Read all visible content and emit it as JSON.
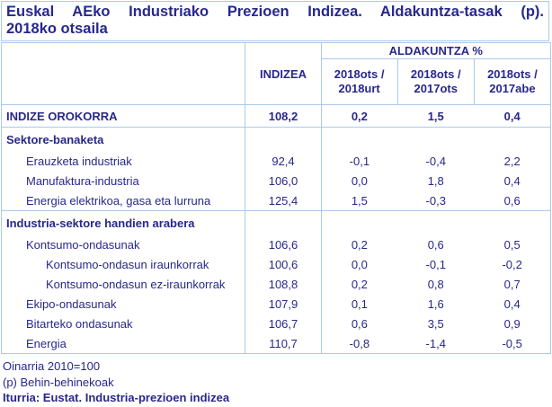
{
  "title": {
    "line1": "Euskal AEko Industriako Prezioen Indizea. Aldakuntza-tasak (p).",
    "line2": "2018ko otsaila"
  },
  "table": {
    "headers": {
      "indizea": "INDIZEA",
      "aldakuntza": "ALDAKUNTZA %",
      "sub": [
        {
          "l1": "2018ots /",
          "l2": "2018urt"
        },
        {
          "l1": "2018ots /",
          "l2": "2017ots"
        },
        {
          "l1": "2018ots /",
          "l2": "2017abe"
        }
      ]
    },
    "rows": [
      {
        "label": "INDIZE OROKORRA",
        "type": "total",
        "indizea": "108,2",
        "v1": "0,2",
        "v2": "1,5",
        "v3": "0,4"
      },
      {
        "label": "Sektore-banaketa",
        "type": "section",
        "indizea": "",
        "v1": "",
        "v2": "",
        "v3": ""
      },
      {
        "label": "Erauzketa industriak",
        "type": "item1",
        "indizea": "92,4",
        "v1": "-0,1",
        "v2": "-0,4",
        "v3": "2,2"
      },
      {
        "label": "Manufaktura-industria",
        "type": "item1",
        "indizea": "106,0",
        "v1": "0,0",
        "v2": "1,8",
        "v3": "0,4"
      },
      {
        "label": "Energia elektrikoa, gasa eta lurruna",
        "type": "item1",
        "indizea": "125,4",
        "v1": "1,5",
        "v2": "-0,3",
        "v3": "0,6"
      },
      {
        "label": "Industria-sektore handien arabera",
        "type": "section",
        "indizea": "",
        "v1": "",
        "v2": "",
        "v3": ""
      },
      {
        "label": "Kontsumo-ondasunak",
        "type": "item1",
        "indizea": "106,6",
        "v1": "0,2",
        "v2": "0,6",
        "v3": "0,5"
      },
      {
        "label": "Kontsumo-ondasun iraunkorrak",
        "type": "item2",
        "indizea": "100,6",
        "v1": "0,0",
        "v2": "-0,1",
        "v3": "-0,2"
      },
      {
        "label": "Kontsumo-ondasun ez-iraunkorrak",
        "type": "item2",
        "indizea": "108,8",
        "v1": "0,2",
        "v2": "0,8",
        "v3": "0,7"
      },
      {
        "label": "Ekipo-ondasunak",
        "type": "item1",
        "indizea": "107,9",
        "v1": "0,1",
        "v2": "1,6",
        "v3": "0,4"
      },
      {
        "label": "Bitarteko ondasunak",
        "type": "item1",
        "indizea": "106,7",
        "v1": "0,6",
        "v2": "3,5",
        "v3": "0,9"
      },
      {
        "label": "Energia",
        "type": "item1",
        "indizea": "110,7",
        "v1": "-0,8",
        "v2": "-1,4",
        "v3": "-0,5"
      }
    ]
  },
  "chart_data": {
    "type": "table",
    "title": "Euskal AEko Industriako Prezioen Indizea. Aldakuntza-tasak (p). 2018ko otsaila",
    "columns": [
      "",
      "INDIZEA",
      "ALDAKUNTZA % 2018ots / 2018urt",
      "ALDAKUNTZA % 2018ots / 2017ots",
      "ALDAKUNTZA % 2018ots / 2017abe"
    ],
    "rows": [
      [
        "INDIZE OROKORRA",
        108.2,
        0.2,
        1.5,
        0.4
      ],
      [
        "Sektore-banaketa",
        null,
        null,
        null,
        null
      ],
      [
        "Erauzketa industriak",
        92.4,
        -0.1,
        -0.4,
        2.2
      ],
      [
        "Manufaktura-industria",
        106.0,
        0.0,
        1.8,
        0.4
      ],
      [
        "Energia elektrikoa, gasa eta lurruna",
        125.4,
        1.5,
        -0.3,
        0.6
      ],
      [
        "Industria-sektore handien arabera",
        null,
        null,
        null,
        null
      ],
      [
        "Kontsumo-ondasunak",
        106.6,
        0.2,
        0.6,
        0.5
      ],
      [
        "Kontsumo-ondasun iraunkorrak",
        100.6,
        0.0,
        -0.1,
        -0.2
      ],
      [
        "Kontsumo-ondasun ez-iraunkorrak",
        108.8,
        0.2,
        0.8,
        0.7
      ],
      [
        "Ekipo-ondasunak",
        107.9,
        0.1,
        1.6,
        0.4
      ],
      [
        "Bitarteko ondasunak",
        106.7,
        0.6,
        3.5,
        0.9
      ],
      [
        "Energia",
        110.7,
        -0.8,
        -1.4,
        -0.5
      ]
    ]
  },
  "footer": {
    "note1": "Oinarria 2010=100",
    "note2": "(p) Behin-behinekoak",
    "source": "Iturria: Eustat. Industria-prezioen indizea"
  },
  "colors": {
    "text": "#27278D",
    "border": "#A9CBEB",
    "background": "#FFFFFF"
  }
}
